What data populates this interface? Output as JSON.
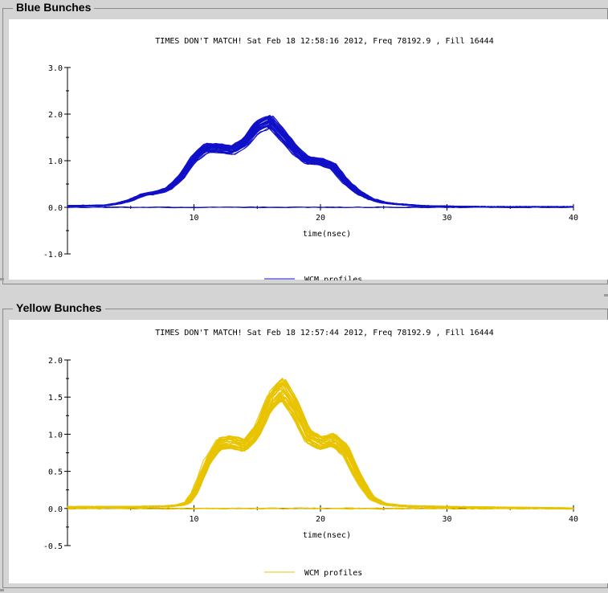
{
  "chart_data": [
    {
      "panel_title": "Blue Bunches",
      "type": "line",
      "title": "TIMES DON'T MATCH!   Sat Feb 18 12:58:16 2012, Freq 78192.9 , Fill 16444",
      "xlabel": "time(nsec)",
      "ylabel": "",
      "xlim": [
        0,
        40
      ],
      "ylim": [
        -1.0,
        3.0
      ],
      "xticks": [
        10,
        20,
        30,
        40
      ],
      "yticks": [
        -1.0,
        0.0,
        1.0,
        2.0,
        3.0
      ],
      "ytick_labels": [
        "-1.0",
        "0.0",
        "1.0",
        "2.0",
        "3.0"
      ],
      "legend": "WCM profiles",
      "legend_position": "bottom-center",
      "color": "#1010c8",
      "x": [
        0,
        3,
        4,
        5,
        6,
        7,
        8,
        9,
        10,
        11,
        12,
        13,
        14,
        15,
        16,
        17,
        18,
        19,
        20,
        21,
        22,
        23,
        24,
        25,
        26,
        27,
        28,
        30,
        33,
        40
      ],
      "y_mean": [
        0.03,
        0.04,
        0.08,
        0.15,
        0.27,
        0.31,
        0.4,
        0.65,
        1.05,
        1.28,
        1.27,
        1.22,
        1.38,
        1.72,
        1.85,
        1.55,
        1.22,
        1.0,
        0.98,
        0.88,
        0.55,
        0.32,
        0.18,
        0.1,
        0.07,
        0.05,
        0.03,
        0.02,
        0.01,
        0.01
      ],
      "y_spread": 0.08,
      "n_profiles": 40,
      "baseline_y": 0.0
    },
    {
      "panel_title": "Yellow Bunches",
      "type": "line",
      "title": "TIMES DON'T MATCH!   Sat Feb 18 12:57:44 2012, Freq 78192.9 , Fill 16444",
      "xlabel": "time(nsec)",
      "ylabel": "",
      "xlim": [
        0,
        40
      ],
      "ylim": [
        -0.5,
        2.0
      ],
      "xticks": [
        10,
        20,
        30,
        40
      ],
      "yticks": [
        -0.5,
        0.0,
        0.5,
        1.0,
        1.5,
        2.0
      ],
      "ytick_labels": [
        "-0.5",
        "0.0",
        "0.5",
        "1.0",
        "1.5",
        "2.0"
      ],
      "legend": "WCM profiles",
      "legend_position": "bottom-center",
      "color": "#e8c400",
      "x": [
        0,
        5,
        8,
        9,
        9.5,
        10,
        10.5,
        11,
        12,
        13,
        14,
        15,
        16,
        17,
        18,
        19,
        20,
        21,
        22,
        23,
        24,
        25,
        26,
        27,
        30,
        35,
        40
      ],
      "y_mean": [
        0.02,
        0.02,
        0.03,
        0.05,
        0.08,
        0.2,
        0.4,
        0.62,
        0.88,
        0.9,
        0.85,
        1.05,
        1.45,
        1.62,
        1.35,
        0.98,
        0.88,
        0.93,
        0.78,
        0.42,
        0.15,
        0.06,
        0.04,
        0.03,
        0.02,
        0.01,
        0.0
      ],
      "y_spread": 0.1,
      "n_profiles": 40,
      "baseline_y": 0.0
    }
  ]
}
